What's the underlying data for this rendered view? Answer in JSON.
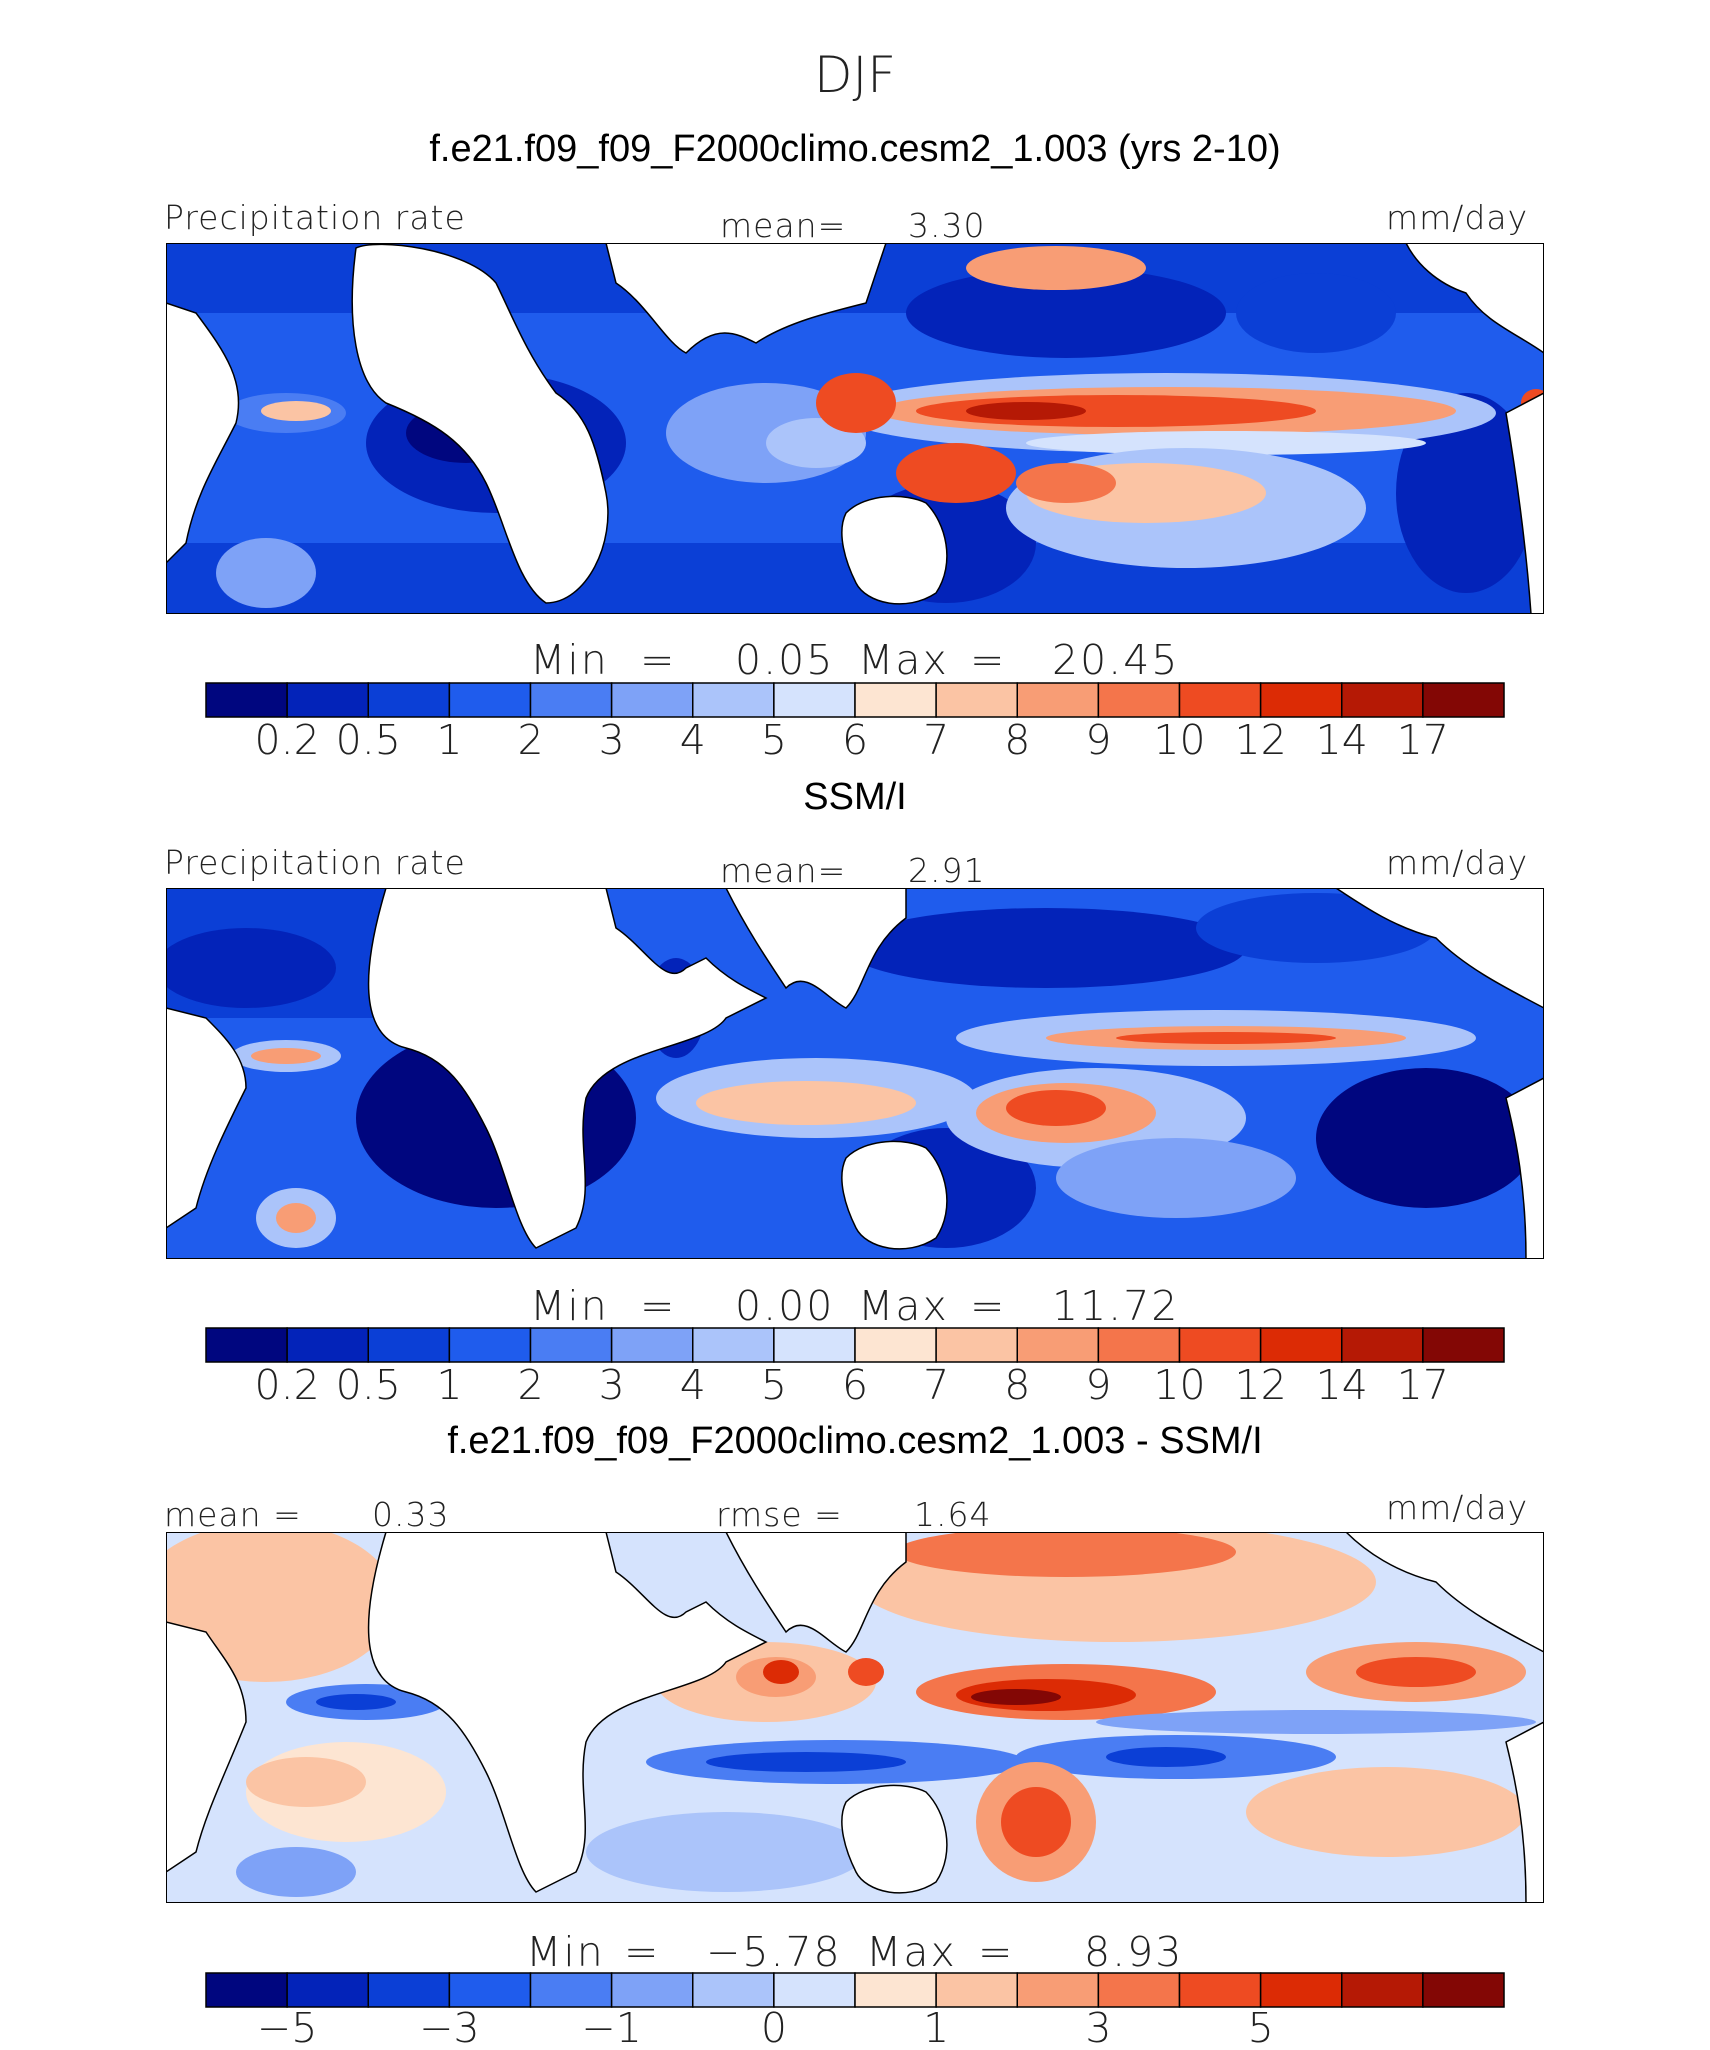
{
  "title": "DJF",
  "colors": {
    "precip_levels": [
      "#00067f",
      "#0323b9",
      "#0b3fd6",
      "#1f5ced",
      "#4a7df3",
      "#7ea2f7",
      "#abc4fa",
      "#d5e3fd",
      "#fde5d2",
      "#fbc4a4",
      "#f89d75",
      "#f4754b",
      "#ee4b22",
      "#dc2b05",
      "#b51905",
      "#830705"
    ],
    "diff_levels": [
      "#00067f",
      "#0323b9",
      "#0b3fd6",
      "#1f5ced",
      "#4a7df3",
      "#7ea2f7",
      "#abc4fa",
      "#d5e3fd",
      "#fde5d2",
      "#fbc4a4",
      "#f89d75",
      "#f4754b",
      "#ee4b22",
      "#dc2b05",
      "#b51905",
      "#830705"
    ],
    "land": "#ffffff"
  },
  "panels": [
    {
      "title": "f.e21.f09_f09_F2000climo.cesm2_1.003 (yrs 2-10)",
      "left_label": "Precipitation rate",
      "center_label": "mean=",
      "center_value": "3.30",
      "units": "mm/day",
      "min_label": "Min",
      "min_value": "0.05",
      "max_label": "Max",
      "max_value": "20.45",
      "colorbar_ticks": [
        "0.2",
        "0.5",
        "1",
        "2",
        "3",
        "4",
        "5",
        "6",
        "7",
        "8",
        "9",
        "10",
        "12",
        "14",
        "17"
      ]
    },
    {
      "title": "SSM/I",
      "left_label": "Precipitation rate",
      "center_label": "mean=",
      "center_value": "2.91",
      "units": "mm/day",
      "min_label": "Min",
      "min_value": "0.00",
      "max_label": "Max",
      "max_value": "11.72",
      "colorbar_ticks": [
        "0.2",
        "0.5",
        "1",
        "2",
        "3",
        "4",
        "5",
        "6",
        "7",
        "8",
        "9",
        "10",
        "12",
        "14",
        "17"
      ]
    },
    {
      "title": "f.e21.f09_f09_F2000climo.cesm2_1.003 - SSM/I",
      "left_label": "mean =",
      "left_value": "0.33",
      "center_label": "rmse =",
      "center_value": "1.64",
      "units": "mm/day",
      "min_label": "Min",
      "min_value": "−5.78",
      "max_label": "Max",
      "max_value": "8.93",
      "colorbar_ticks": [
        "−5",
        "−3",
        "−1",
        "0",
        "1",
        "3",
        "5"
      ]
    }
  ],
  "chart_data": [
    {
      "type": "heatmap",
      "title": "f.e21.f09_f09_F2000climo.cesm2_1.003 (yrs 2-10)",
      "variable": "Precipitation rate",
      "units": "mm/day",
      "mean": 3.3,
      "min": 0.05,
      "max": 20.45,
      "contour_levels": [
        0.2,
        0.5,
        1,
        2,
        3,
        4,
        5,
        6,
        7,
        8,
        9,
        10,
        12,
        14,
        17
      ]
    },
    {
      "type": "heatmap",
      "title": "SSM/I",
      "variable": "Precipitation rate",
      "units": "mm/day",
      "mean": 2.91,
      "min": 0.0,
      "max": 11.72,
      "contour_levels": [
        0.2,
        0.5,
        1,
        2,
        3,
        4,
        5,
        6,
        7,
        8,
        9,
        10,
        12,
        14,
        17
      ]
    },
    {
      "type": "heatmap",
      "title": "f.e21.f09_f09_F2000climo.cesm2_1.003 - SSM/I",
      "units": "mm/day",
      "mean": 0.33,
      "rmse": 1.64,
      "min": -5.78,
      "max": 8.93,
      "contour_levels": [
        -6,
        -5,
        -4,
        -3,
        -2,
        -1,
        -0.5,
        0,
        0.5,
        1,
        2,
        3,
        4,
        5,
        6
      ]
    }
  ]
}
